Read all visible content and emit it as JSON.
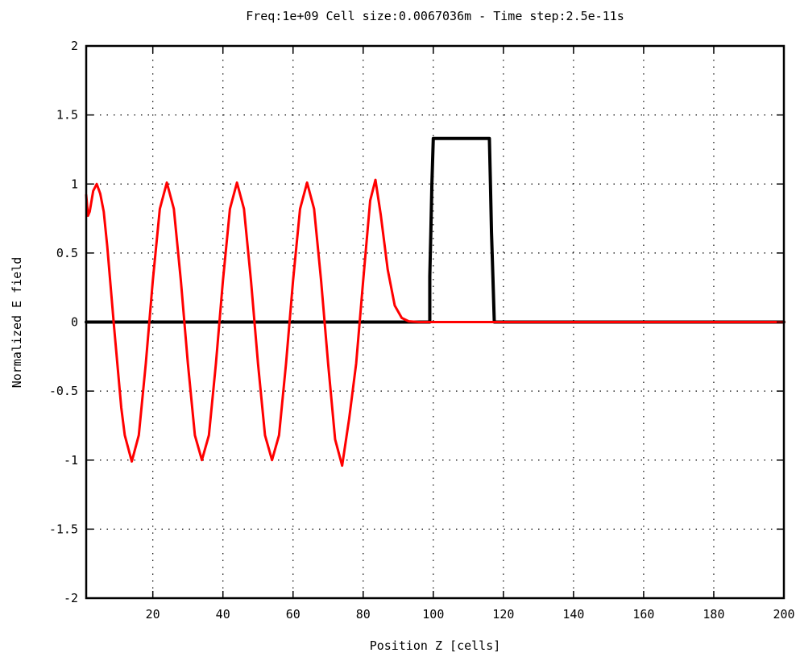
{
  "chart_data": {
    "type": "line",
    "title": "Freq:1e+09 Cell size:0.0067036m - Time step:2.5e-11s",
    "xlabel": "Position Z [cells]",
    "ylabel": "Normalized E field",
    "xlim": [
      1,
      200
    ],
    "ylim": [
      -2,
      2
    ],
    "xticks": [
      20,
      40,
      60,
      80,
      100,
      120,
      140,
      160,
      180,
      200
    ],
    "xtick_labels": [
      "20",
      "40",
      "60",
      "80",
      "100",
      "120",
      "140",
      "160",
      "180",
      "200"
    ],
    "yticks": [
      -2,
      -1.5,
      -1,
      -0.5,
      0,
      0.5,
      1,
      1.5,
      2
    ],
    "ytick_labels": [
      "-2",
      "-1.5",
      "-1",
      "-0.5",
      "0",
      "0.5",
      "1",
      "1.5",
      "2"
    ],
    "grid": true,
    "legend": "none",
    "series": [
      {
        "color": "#000000",
        "x": [
          1,
          99,
          99,
          99.3,
          99.6,
          100,
          100.3,
          116,
          116.3,
          116.6,
          117,
          117.4,
          200
        ],
        "y": [
          0,
          0,
          0.33,
          0.65,
          1.0,
          1.33,
          1.33,
          1.33,
          1.0,
          0.65,
          0.33,
          0,
          0
        ]
      },
      {
        "color": "#ff0000",
        "x": [
          1,
          1.5,
          2,
          3,
          4,
          5,
          6,
          7,
          9,
          11,
          12,
          14,
          16,
          18,
          20,
          22,
          24,
          26,
          28,
          30,
          32,
          34,
          36,
          38,
          40,
          42,
          44,
          46,
          48,
          50,
          52,
          54,
          56,
          58,
          60,
          62,
          64,
          66,
          68,
          70,
          72,
          74,
          76,
          78,
          80,
          82,
          83.5,
          85,
          87,
          89,
          91,
          93,
          96,
          200
        ],
        "y": [
          0.92,
          0.77,
          0.8,
          0.95,
          1.0,
          0.93,
          0.8,
          0.55,
          -0.05,
          -0.62,
          -0.82,
          -1.01,
          -0.82,
          -0.3,
          0.3,
          0.82,
          1.01,
          0.82,
          0.3,
          -0.3,
          -0.82,
          -1.0,
          -0.82,
          -0.3,
          0.3,
          0.82,
          1.01,
          0.82,
          0.3,
          -0.3,
          -0.82,
          -1.0,
          -0.82,
          -0.3,
          0.3,
          0.82,
          1.01,
          0.82,
          0.3,
          -0.3,
          -0.85,
          -1.04,
          -0.7,
          -0.3,
          0.3,
          0.88,
          1.03,
          0.78,
          0.38,
          0.12,
          0.03,
          0.005,
          0,
          0
        ]
      }
    ]
  }
}
